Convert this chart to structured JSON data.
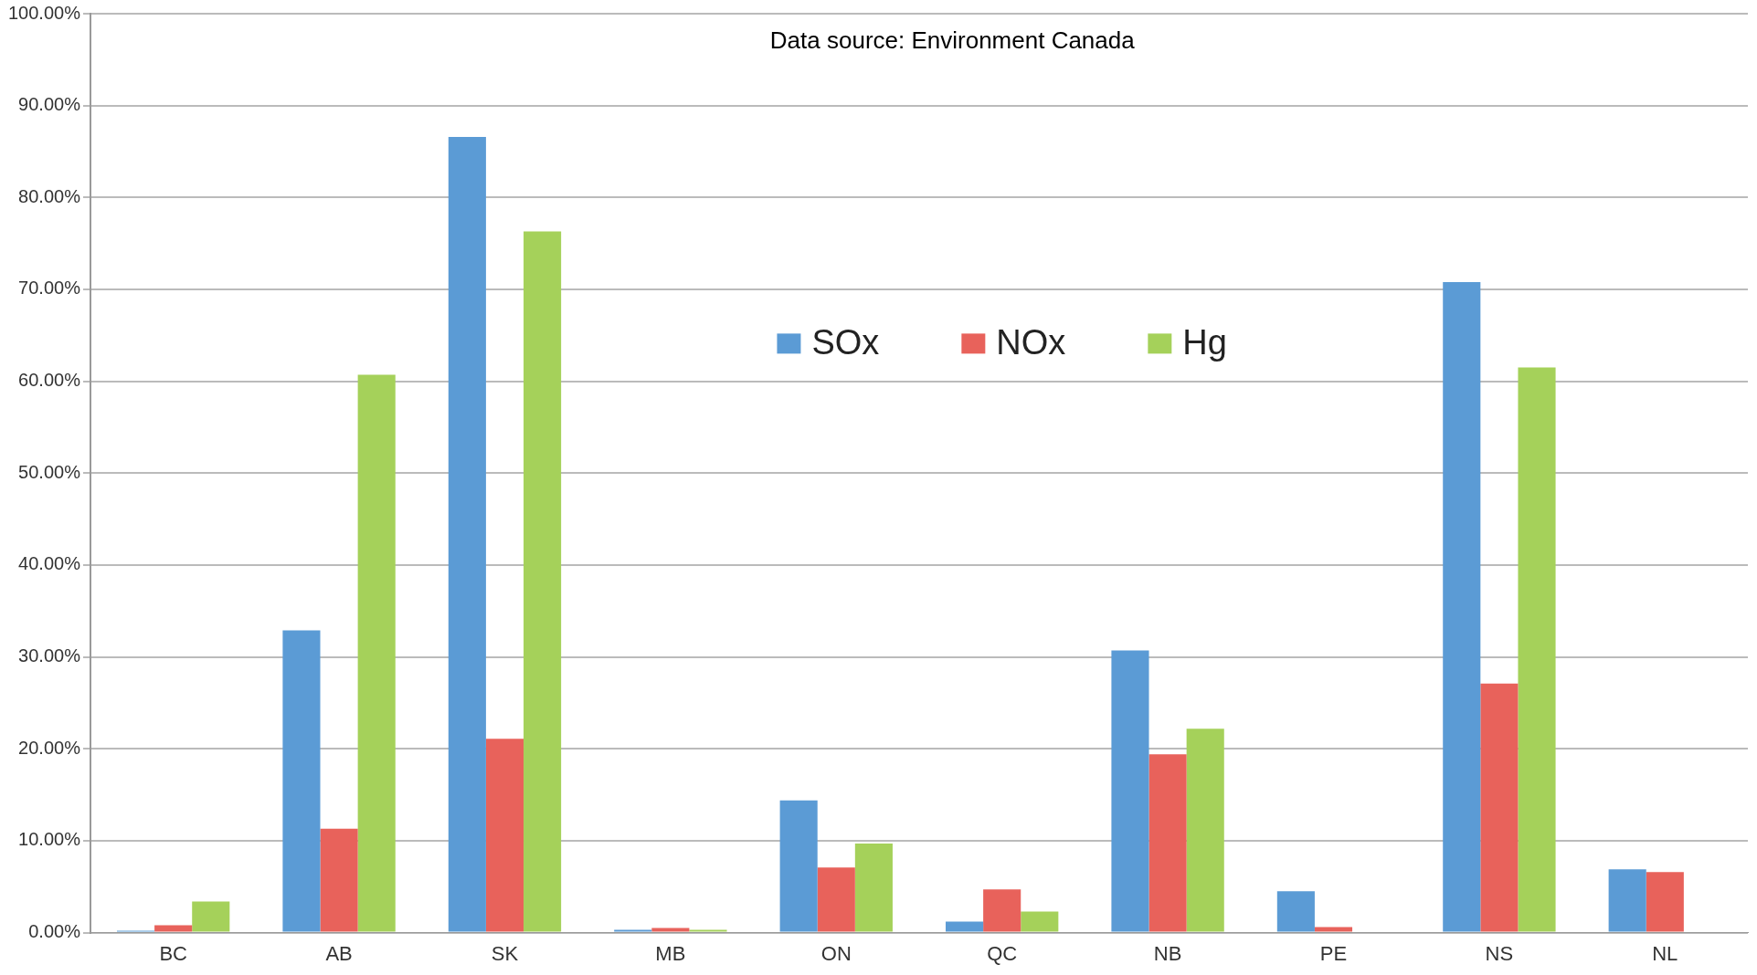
{
  "chart_data": {
    "type": "bar",
    "categories": [
      "BC",
      "AB",
      "SK",
      "MB",
      "ON",
      "QC",
      "NB",
      "PE",
      "NS",
      "NL"
    ],
    "series": [
      {
        "name": "SOx",
        "color": "#5b9bd5",
        "values": [
          0.2,
          32.9,
          86.6,
          0.3,
          14.4,
          1.2,
          30.7,
          4.5,
          70.8,
          6.9
        ]
      },
      {
        "name": "NOx",
        "color": "#e8625b",
        "values": [
          0.8,
          11.3,
          21.1,
          0.5,
          7.1,
          4.7,
          19.4,
          0.6,
          27.1,
          6.6
        ]
      },
      {
        "name": "Hg",
        "color": "#a5d15a",
        "values": [
          3.4,
          60.7,
          76.3,
          0.3,
          9.7,
          2.3,
          22.2,
          0.1,
          61.5,
          0
        ]
      }
    ],
    "ylim": [
      0,
      100
    ],
    "yticks": [
      {
        "value": 0,
        "label": "0.00%"
      },
      {
        "value": 10,
        "label": "10.00%"
      },
      {
        "value": 20,
        "label": "20.00%"
      },
      {
        "value": 30,
        "label": "30.00%"
      },
      {
        "value": 40,
        "label": "40.00%"
      },
      {
        "value": 50,
        "label": "50.00%"
      },
      {
        "value": 60,
        "label": "60.00%"
      },
      {
        "value": 70,
        "label": "70.00%"
      },
      {
        "value": 80,
        "label": "80.00%"
      },
      {
        "value": 90,
        "label": "90.00%"
      },
      {
        "value": 100,
        "label": "100.00%"
      }
    ],
    "grid": "y",
    "legend": "top",
    "annotations": [
      "Data source: Environment Canada"
    ]
  }
}
